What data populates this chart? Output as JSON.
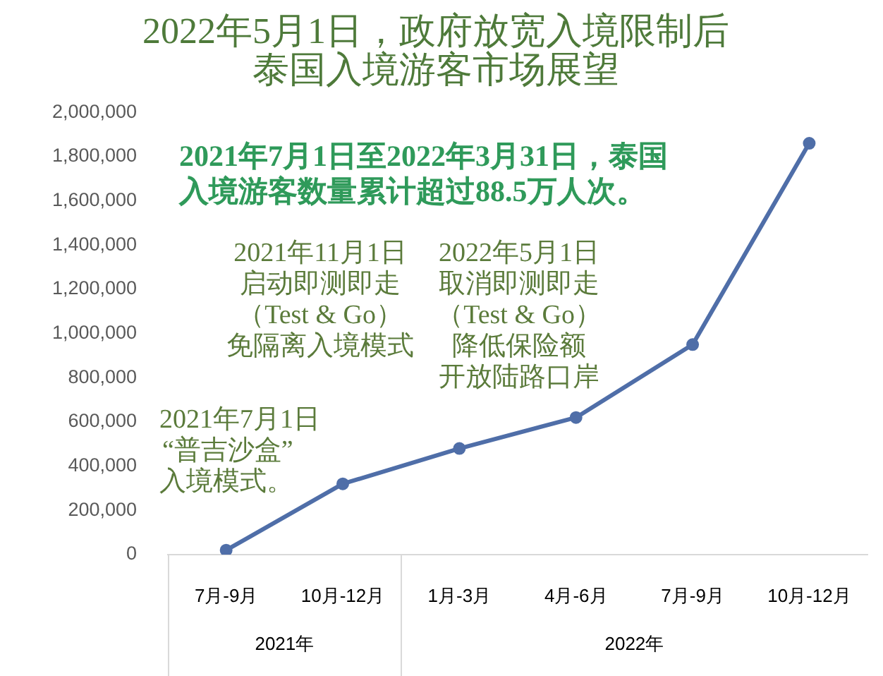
{
  "chart_data": {
    "type": "line",
    "title": "2022年5月1日，政府放宽入境限制后泰国入境游客市场展望",
    "categories": [
      "7月-9月",
      "10月-12月",
      "1月-3月",
      "4月-6月",
      "7月-9月",
      "10月-12月"
    ],
    "series": [
      {
        "color": "#4f6ea8",
        "values": [
          20000,
          320000,
          480000,
          620000,
          950000,
          1860000
        ]
      }
    ],
    "ylim": [
      0,
      2000000
    ],
    "yticks": [
      0,
      {
        "value": 200000,
        "label": "200,000"
      },
      {
        "value": 400000,
        "label": "400,000"
      },
      {
        "value": 600000,
        "label": "600,000"
      },
      {
        "value": 800000,
        "label": "800,000"
      },
      {
        "value": 1000000,
        "label": "1,000,000"
      },
      {
        "value": 1200000,
        "label": "1,200,000"
      },
      {
        "value": 1400000,
        "label": "1,400,000"
      },
      {
        "value": 1600000,
        "label": "1,600,000"
      },
      {
        "value": 1800000,
        "label": "1,800,000"
      },
      {
        "value": 2000000,
        "label": "2,000,000"
      }
    ],
    "marker": "circle",
    "line_style": "solid",
    "annotations": [
      "2021年7月1日至2022年3月31日，泰国入境游客数量累计超过88.5万人次。",
      "2021年7月1日",
      "“普吉沙盒”",
      "入境模式。",
      "2021年11月1日",
      "启动即测即走",
      "（Test & Go）",
      "免隔离入境模式",
      "2022年5月1日",
      "取消即测即走",
      "（Test & Go）",
      "降低保险额",
      "开放陆路口岸",
      "2021年",
      "2022年"
    ]
  }
}
